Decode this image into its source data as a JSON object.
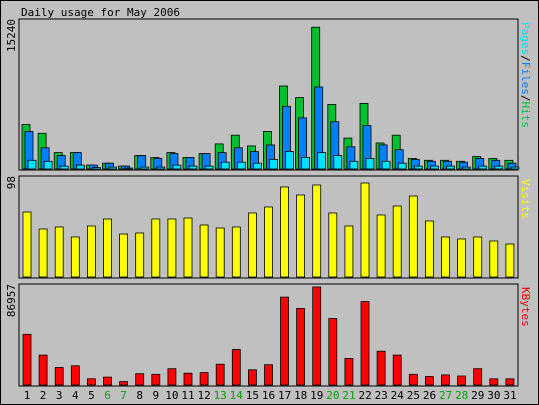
{
  "title": "Daily usage for May 2006",
  "colors": {
    "background": "#c0c0c0",
    "plot_bg": "#c0c0c0",
    "hits": "#00c030",
    "files": "#0080ff",
    "pages": "#00e0ff",
    "visits": "#ffff00",
    "kbytes": "#ff0000",
    "weekday_label": "#000000",
    "weekend_label": "#00a000"
  },
  "x_labels": [
    "1",
    "2",
    "3",
    "4",
    "5",
    "6",
    "7",
    "8",
    "9",
    "10",
    "11",
    "12",
    "13",
    "14",
    "15",
    "16",
    "17",
    "18",
    "19",
    "20",
    "21",
    "22",
    "23",
    "24",
    "25",
    "26",
    "27",
    "28",
    "29",
    "30",
    "31"
  ],
  "weekend_days": [
    "6",
    "7",
    "13",
    "14",
    "20",
    "21",
    "27",
    "28"
  ],
  "chart_data": [
    {
      "type": "bar",
      "name": "hits-files-pages",
      "title": "Daily usage for May 2006",
      "ylabel": "Pages/Files/Hits",
      "legend_parts": [
        "Pages",
        "/",
        "Files",
        "/",
        "Hits"
      ],
      "ymax_label": "15240",
      "ylim": [
        0,
        15240
      ],
      "categories": [
        "1",
        "2",
        "3",
        "4",
        "5",
        "6",
        "7",
        "8",
        "9",
        "10",
        "11",
        "12",
        "13",
        "14",
        "15",
        "16",
        "17",
        "18",
        "19",
        "20",
        "21",
        "22",
        "23",
        "24",
        "25",
        "26",
        "27",
        "28",
        "29",
        "30",
        "31"
      ],
      "series": [
        {
          "name": "Hits",
          "values": [
            4600,
            3700,
            1700,
            1700,
            400,
            600,
            300,
            1400,
            1200,
            1700,
            1200,
            1600,
            2600,
            3500,
            2400,
            3900,
            8600,
            7400,
            14700,
            6700,
            3200,
            6800,
            2700,
            3500,
            1100,
            900,
            900,
            800,
            1300,
            1100,
            900
          ]
        },
        {
          "name": "Files",
          "values": [
            3900,
            2200,
            1400,
            1700,
            400,
            600,
            300,
            1400,
            1100,
            1600,
            1200,
            1600,
            1700,
            2200,
            1800,
            2500,
            6500,
            5300,
            8500,
            4900,
            2300,
            4500,
            2500,
            2000,
            1000,
            800,
            800,
            700,
            1100,
            900,
            600
          ]
        },
        {
          "name": "Pages",
          "values": [
            900,
            800,
            300,
            400,
            150,
            200,
            100,
            200,
            200,
            400,
            300,
            300,
            700,
            700,
            600,
            1000,
            1800,
            1200,
            1700,
            1400,
            800,
            1100,
            800,
            600,
            300,
            300,
            300,
            200,
            300,
            300,
            200
          ]
        }
      ]
    },
    {
      "type": "bar",
      "name": "visits",
      "ylabel": "Visits",
      "ymax_label": "98",
      "ylim": [
        0,
        98
      ],
      "categories": [
        "1",
        "2",
        "3",
        "4",
        "5",
        "6",
        "7",
        "8",
        "9",
        "10",
        "11",
        "12",
        "13",
        "14",
        "15",
        "16",
        "17",
        "18",
        "19",
        "20",
        "21",
        "22",
        "23",
        "24",
        "25",
        "26",
        "27",
        "28",
        "29",
        "30",
        "31"
      ],
      "series": [
        {
          "name": "Visits",
          "values": [
            65,
            48,
            50,
            40,
            51,
            58,
            43,
            44,
            58,
            58,
            59,
            52,
            49,
            50,
            64,
            70,
            90,
            82,
            92,
            64,
            51,
            94,
            62,
            71,
            81,
            56,
            40,
            38,
            40,
            36,
            33
          ]
        }
      ]
    },
    {
      "type": "bar",
      "name": "kbytes",
      "ylabel": "KBytes",
      "ymax_label": "86957",
      "ylim": [
        0,
        86957
      ],
      "categories": [
        "1",
        "2",
        "3",
        "4",
        "5",
        "6",
        "7",
        "8",
        "9",
        "10",
        "11",
        "12",
        "13",
        "14",
        "15",
        "16",
        "17",
        "18",
        "19",
        "20",
        "21",
        "22",
        "23",
        "24",
        "25",
        "26",
        "27",
        "28",
        "29",
        "30",
        "31"
      ],
      "series": [
        {
          "name": "KBytes",
          "values": [
            45000,
            26500,
            15500,
            17000,
            5500,
            7000,
            3000,
            10000,
            9500,
            14500,
            10500,
            11000,
            18500,
            31500,
            13500,
            18000,
            78000,
            68000,
            86957,
            59000,
            23500,
            74000,
            30000,
            26500,
            9500,
            7500,
            9000,
            8000,
            14500,
            5500,
            5500
          ]
        }
      ]
    }
  ]
}
